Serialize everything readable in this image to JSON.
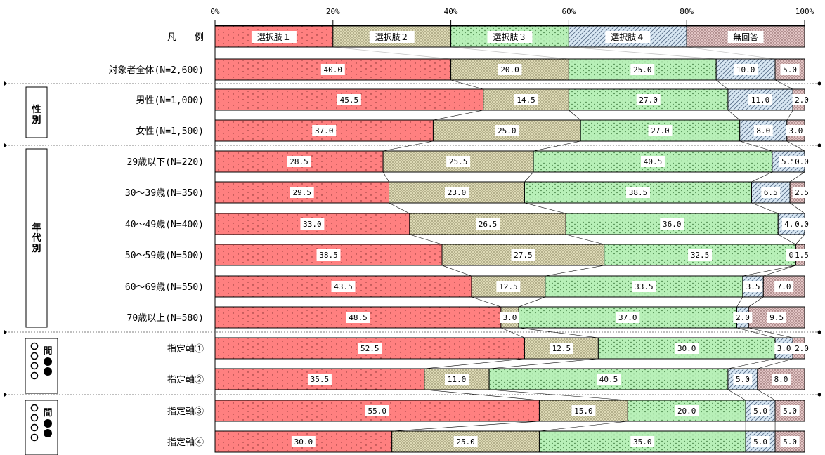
{
  "chart_data": {
    "type": "bar",
    "orientation": "horizontal",
    "stacked": true,
    "percent_stacked": true,
    "xlim": [
      0,
      100
    ],
    "x_ticks": [
      "0%",
      "20%",
      "40%",
      "60%",
      "80%",
      "100%"
    ],
    "legend": {
      "label": "凡　　例",
      "entries": [
        "選択肢１",
        "選択肢２",
        "選択肢３",
        "選択肢４",
        "無回答"
      ]
    },
    "colors": [
      "#ff8080",
      "#ddd9b5",
      "#b8f0b8",
      "#d9e8f4",
      "#e2c4c4"
    ],
    "series": [
      {
        "name": "選択肢１",
        "values": [
          40.0,
          45.5,
          37.0,
          28.5,
          29.5,
          33.0,
          38.5,
          43.5,
          48.5,
          52.5,
          35.5,
          55.0,
          30.0
        ]
      },
      {
        "name": "選択肢２",
        "values": [
          20.0,
          14.5,
          25.0,
          25.5,
          23.0,
          26.5,
          27.5,
          12.5,
          3.0,
          12.5,
          11.0,
          15.0,
          25.0
        ]
      },
      {
        "name": "選択肢３",
        "values": [
          25.0,
          27.0,
          27.0,
          40.5,
          38.5,
          36.0,
          32.5,
          33.5,
          37.0,
          30.0,
          40.5,
          20.0,
          35.0
        ]
      },
      {
        "name": "選択肢４",
        "values": [
          10.0,
          11.0,
          8.0,
          5.5,
          6.5,
          4.5,
          0.0,
          3.5,
          2.0,
          3.0,
          5.0,
          5.0,
          5.0
        ]
      },
      {
        "name": "無回答",
        "values": [
          5.0,
          2.0,
          3.0,
          0.0,
          2.5,
          0.0,
          1.5,
          7.0,
          9.5,
          2.0,
          8.0,
          5.0,
          5.0
        ]
      }
    ],
    "rows": [
      {
        "label": "対象者全体(N=2,600)"
      },
      {
        "label": "男性(N=1,000)"
      },
      {
        "label": "女性(N=1,500)"
      },
      {
        "label": "29歳以下(N=220)"
      },
      {
        "label": "30～39歳(N=350)"
      },
      {
        "label": "40～49歳(N=400)"
      },
      {
        "label": "50～59歳(N=500)"
      },
      {
        "label": "60～69歳(N=550)"
      },
      {
        "label": "70歳以上(N=580)"
      },
      {
        "label": "指定軸①"
      },
      {
        "label": "指定軸②"
      },
      {
        "label": "指定軸③"
      },
      {
        "label": "指定軸④"
      }
    ],
    "groups": [
      {
        "label": "性別",
        "rows": [
          1,
          2
        ]
      },
      {
        "label": "年代別",
        "rows": [
          3,
          4,
          5,
          6,
          7,
          8
        ]
      },
      {
        "label": "問",
        "icon": "circles-question-icon",
        "rows": [
          9,
          10
        ]
      },
      {
        "label": "問",
        "icon": "circles-question-icon",
        "rows": [
          11,
          12
        ]
      }
    ]
  }
}
